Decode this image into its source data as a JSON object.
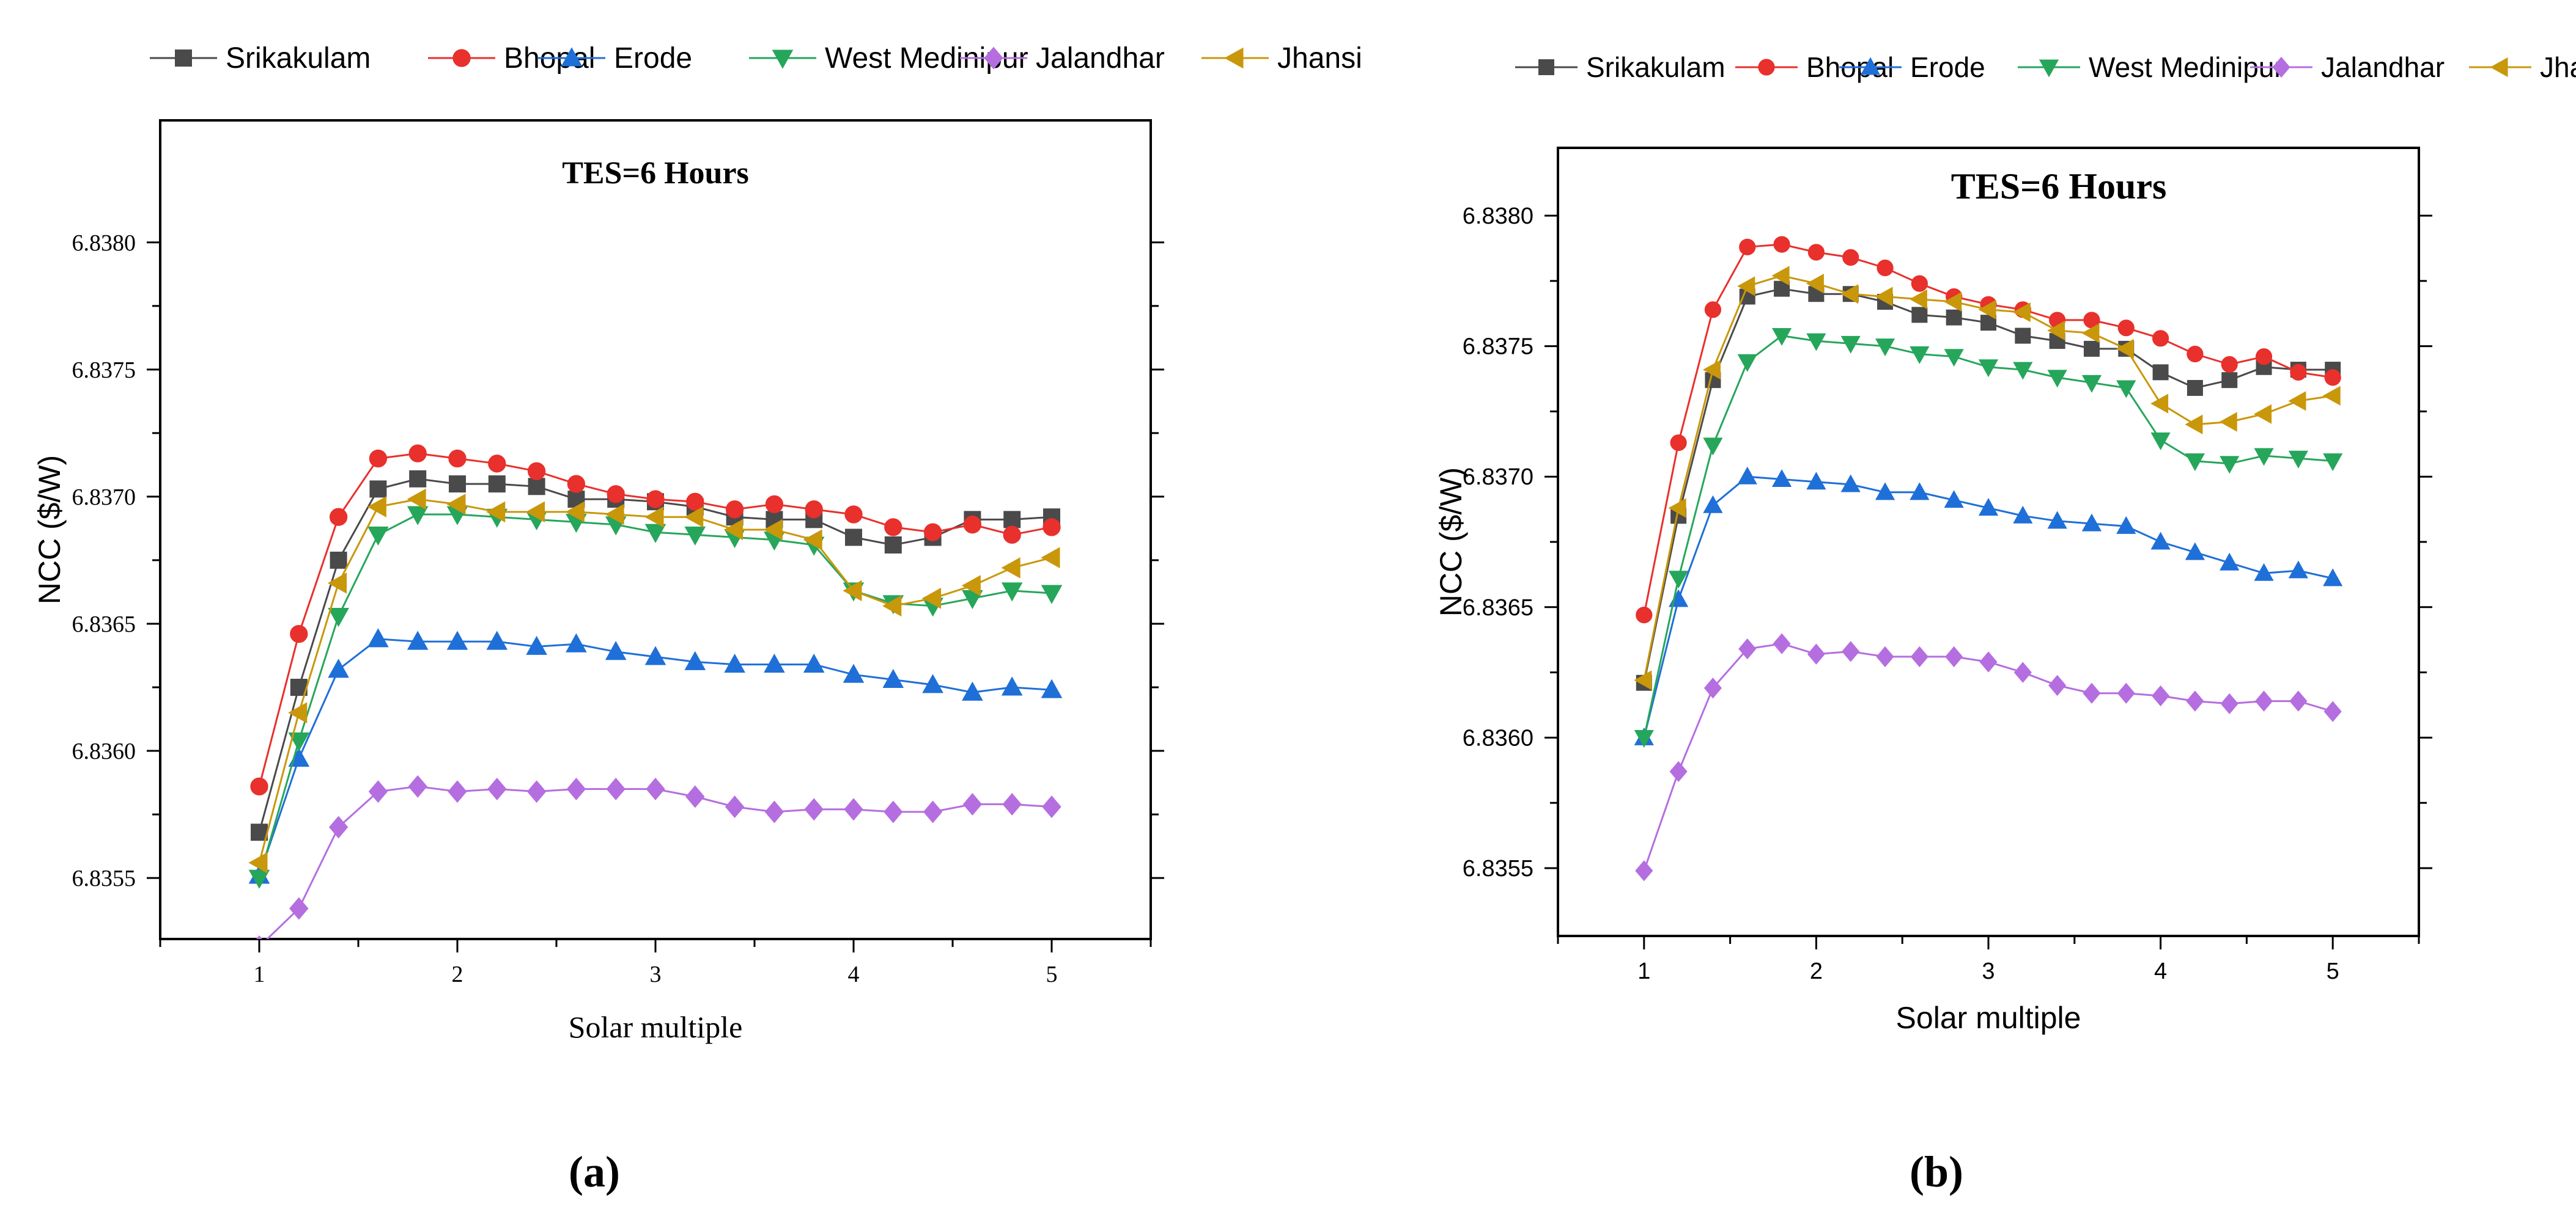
{
  "colors": {
    "Srikakulam": "#4a4a4a",
    "Bhopal": "#e8302c",
    "Erode": "#1f6fd8",
    "West Medinipur": "#26a65b",
    "Jalandhar": "#b56ee0",
    "Jhansi": "#c9970a"
  },
  "marker_shapes": {
    "Srikakulam": "square",
    "Bhopal": "circle",
    "Erode": "triangle-up",
    "West Medinipur": "triangle-down",
    "Jalandhar": "diamond",
    "Jhansi": "triangle-left"
  },
  "chart_data": [
    {
      "type": "line",
      "panel_label": "(a)",
      "annotation": "TES=6 Hours",
      "xlabel": "Solar multiple",
      "ylabel": "NCC ($/W)",
      "xlim": [
        0.5,
        5.5
      ],
      "ylim": [
        6.83526,
        6.83848
      ],
      "xticks": [
        "1",
        "2",
        "3",
        "4",
        "5"
      ],
      "yticks": [
        "6.8355",
        "6.8360",
        "6.8365",
        "6.8370",
        "6.8375",
        "6.8380"
      ],
      "legend_position": "top",
      "x": [
        1,
        1.2,
        1.4,
        1.6,
        1.8,
        2,
        2.2,
        2.4,
        2.6,
        2.8,
        3,
        3.2,
        3.4,
        3.6,
        3.8,
        4,
        4.2,
        4.4,
        4.6,
        4.8,
        5
      ],
      "series": [
        {
          "name": "Srikakulam",
          "values": [
            6.83568,
            6.83625,
            6.83675,
            6.83703,
            6.83707,
            6.83705,
            6.83705,
            6.83704,
            6.83699,
            6.83699,
            6.83698,
            6.83696,
            6.83692,
            6.83691,
            6.83691,
            6.83684,
            6.83681,
            6.83684,
            6.83691,
            6.83691,
            6.83692
          ]
        },
        {
          "name": "Bhopal",
          "values": [
            6.83586,
            6.83646,
            6.83692,
            6.83715,
            6.83717,
            6.83715,
            6.83713,
            6.8371,
            6.83705,
            6.83701,
            6.83699,
            6.83698,
            6.83695,
            6.83697,
            6.83695,
            6.83693,
            6.83688,
            6.83686,
            6.83689,
            6.83685,
            6.83688
          ]
        },
        {
          "name": "Erode",
          "values": [
            6.83551,
            6.83597,
            6.83632,
            6.83644,
            6.83643,
            6.83643,
            6.83643,
            6.83641,
            6.83642,
            6.83639,
            6.83637,
            6.83635,
            6.83634,
            6.83634,
            6.83634,
            6.8363,
            6.83628,
            6.83626,
            6.83623,
            6.83625,
            6.83624
          ]
        },
        {
          "name": "West Medinipur",
          "values": [
            6.8355,
            6.83604,
            6.83653,
            6.83685,
            6.83693,
            6.83693,
            6.83692,
            6.83691,
            6.8369,
            6.83689,
            6.83686,
            6.83685,
            6.83684,
            6.83683,
            6.83681,
            6.83663,
            6.83658,
            6.83657,
            6.8366,
            6.83663,
            6.83662
          ]
        },
        {
          "name": "Jalandhar",
          "values": [
            6.83523,
            6.83538,
            6.8357,
            6.83584,
            6.83586,
            6.83584,
            6.83585,
            6.83584,
            6.83585,
            6.83585,
            6.83585,
            6.83582,
            6.83578,
            6.83576,
            6.83577,
            6.83577,
            6.83576,
            6.83576,
            6.83579,
            6.83579,
            6.83578
          ]
        },
        {
          "name": "Jhansi",
          "values": [
            6.83556,
            6.83615,
            6.83666,
            6.83696,
            6.83699,
            6.83697,
            6.83694,
            6.83694,
            6.83694,
            6.83693,
            6.83692,
            6.83692,
            6.83687,
            6.83687,
            6.83683,
            6.83663,
            6.83657,
            6.8366,
            6.83665,
            6.83672,
            6.83676
          ]
        }
      ]
    },
    {
      "type": "line",
      "panel_label": "(b)",
      "annotation": "TES=6 Hours",
      "xlabel": "Solar multiple",
      "ylabel": "NCC ($/W)",
      "xlim": [
        0.5,
        5.5
      ],
      "ylim": [
        6.83524,
        6.83826
      ],
      "xticks": [
        "1",
        "2",
        "3",
        "4",
        "5"
      ],
      "yticks": [
        "6.8355",
        "6.8360",
        "6.8365",
        "6.8370",
        "6.8375",
        "6.8380"
      ],
      "legend_position": "top",
      "x": [
        1,
        1.2,
        1.4,
        1.6,
        1.8,
        2,
        2.2,
        2.4,
        2.6,
        2.8,
        3,
        3.2,
        3.4,
        3.6,
        3.8,
        4,
        4.2,
        4.4,
        4.6,
        4.8,
        5
      ],
      "series": [
        {
          "name": "Srikakulam",
          "values": [
            6.83621,
            6.83685,
            6.83737,
            6.83769,
            6.83772,
            6.8377,
            6.8377,
            6.83767,
            6.83762,
            6.83761,
            6.83759,
            6.83754,
            6.83752,
            6.83749,
            6.83749,
            6.8374,
            6.83734,
            6.83737,
            6.83742,
            6.83741,
            6.83741
          ]
        },
        {
          "name": "Bhopal",
          "values": [
            6.83647,
            6.83713,
            6.83764,
            6.83788,
            6.83789,
            6.83786,
            6.83784,
            6.8378,
            6.83774,
            6.83769,
            6.83766,
            6.83764,
            6.8376,
            6.8376,
            6.83757,
            6.83753,
            6.83747,
            6.83743,
            6.83746,
            6.8374,
            6.83738
          ]
        },
        {
          "name": "Erode",
          "values": [
            6.836,
            6.83653,
            6.83689,
            6.837,
            6.83699,
            6.83698,
            6.83697,
            6.83694,
            6.83694,
            6.83691,
            6.83688,
            6.83685,
            6.83683,
            6.83682,
            6.83681,
            6.83675,
            6.83671,
            6.83667,
            6.83663,
            6.83664,
            6.83661
          ]
        },
        {
          "name": "West Medinipur",
          "values": [
            6.836,
            6.83661,
            6.83712,
            6.83744,
            6.83754,
            6.83752,
            6.83751,
            6.8375,
            6.83747,
            6.83746,
            6.83742,
            6.83741,
            6.83738,
            6.83736,
            6.83734,
            6.83714,
            6.83706,
            6.83705,
            6.83708,
            6.83707,
            6.83706
          ]
        },
        {
          "name": "Jalandhar",
          "values": [
            6.83549,
            6.83587,
            6.83619,
            6.83634,
            6.83636,
            6.83632,
            6.83633,
            6.83631,
            6.83631,
            6.83631,
            6.83629,
            6.83625,
            6.8362,
            6.83617,
            6.83617,
            6.83616,
            6.83614,
            6.83613,
            6.83614,
            6.83614,
            6.8361
          ]
        },
        {
          "name": "Jhansi",
          "values": [
            6.83622,
            6.83688,
            6.83741,
            6.83773,
            6.83777,
            6.83774,
            6.8377,
            6.83769,
            6.83768,
            6.83767,
            6.83764,
            6.83763,
            6.83756,
            6.83755,
            6.83749,
            6.83728,
            6.8372,
            6.83721,
            6.83724,
            6.83729,
            6.83731
          ]
        }
      ]
    }
  ]
}
